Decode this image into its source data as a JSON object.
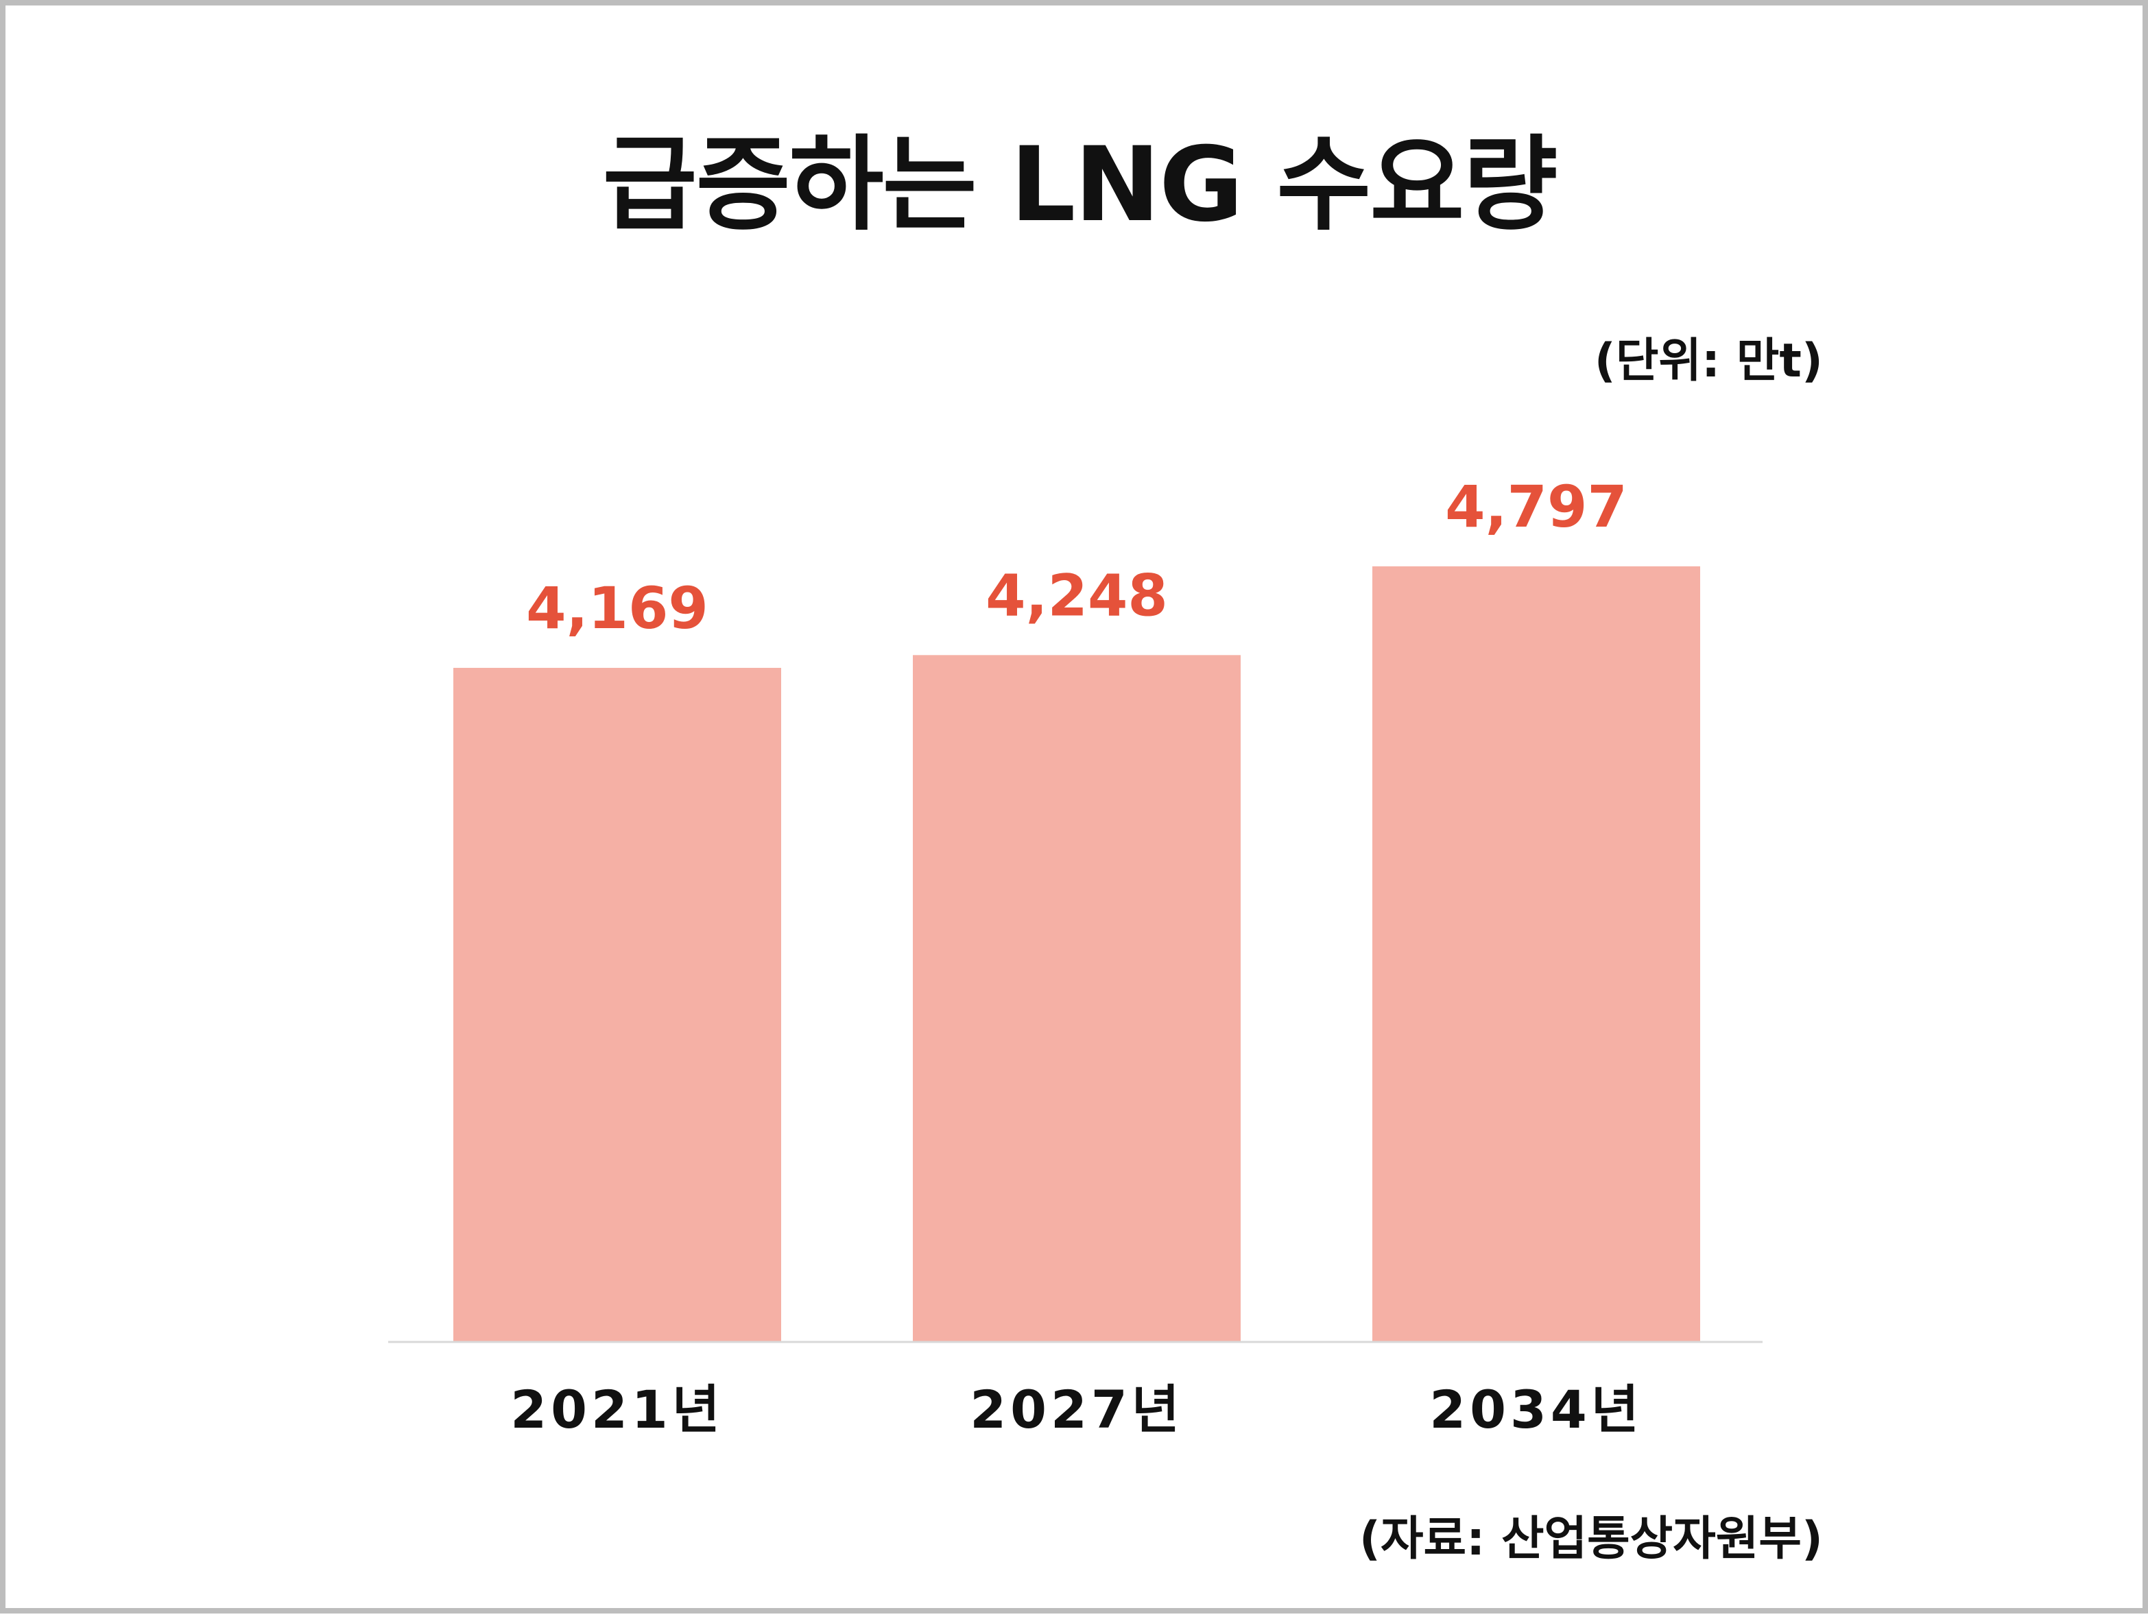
{
  "chart_data": {
    "type": "bar",
    "title": "급증하는 LNG 수요량",
    "unit_note": "(단위: 만t)",
    "source_note": "(자료: 산업통상자원부)",
    "categories": [
      "2021년",
      "2027년",
      "2034년"
    ],
    "values": [
      4169,
      4248,
      4797
    ],
    "value_labels": [
      "4,169",
      "4,248",
      "4,797"
    ],
    "ylim": [
      0,
      5000
    ],
    "grid": false,
    "legend": "none",
    "colors": {
      "bar": "#f5b0a5",
      "value_label": "#e5523a",
      "axis": "#d9d9d9",
      "text": "#111111",
      "border": "#bdbdbd"
    }
  }
}
